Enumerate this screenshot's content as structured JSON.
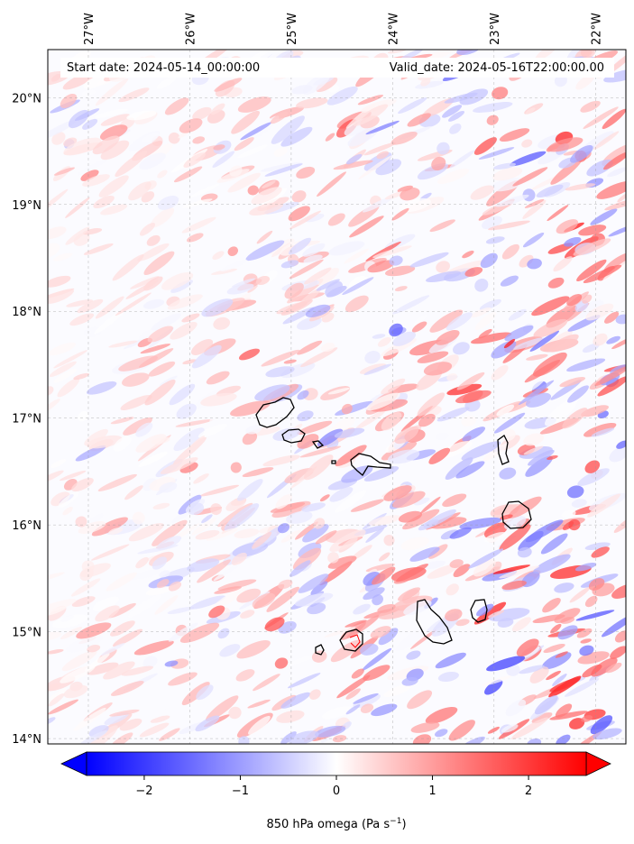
{
  "header": {
    "start_date": "Start date: 2024-05-14_00:00:00",
    "valid_date": "Valid_date: 2024-05-16T22:00:00.00"
  },
  "map": {
    "lon_range": [
      -27.4,
      -21.7
    ],
    "lat_range": [
      13.95,
      20.45
    ],
    "lon_ticks": [
      {
        "value": -27,
        "label": "27°W"
      },
      {
        "value": -26,
        "label": "26°W"
      },
      {
        "value": -25,
        "label": "25°W"
      },
      {
        "value": -24,
        "label": "24°W"
      },
      {
        "value": -23,
        "label": "23°W"
      },
      {
        "value": -22,
        "label": "22°W"
      }
    ],
    "lat_ticks": [
      {
        "value": 14,
        "label": "14°N"
      },
      {
        "value": 15,
        "label": "15°N"
      },
      {
        "value": 16,
        "label": "16°N"
      },
      {
        "value": 17,
        "label": "17°N"
      },
      {
        "value": 18,
        "label": "18°N"
      },
      {
        "value": 19,
        "label": "19°N"
      },
      {
        "value": 20,
        "label": "20°N"
      }
    ],
    "gridlines": true,
    "field_colors": {
      "negative": "#0000ff",
      "zero": "#ffffff",
      "positive": "#ff0000"
    }
  },
  "colorbar": {
    "range": [
      -2.6,
      2.6
    ],
    "ticks": [
      {
        "value": -2,
        "label": "−2"
      },
      {
        "value": -1,
        "label": "−1"
      },
      {
        "value": 0,
        "label": "0"
      },
      {
        "value": 1,
        "label": "1"
      },
      {
        "value": 2,
        "label": "2"
      }
    ],
    "label_main": "850 hPa omega (Pa s",
    "label_exp": "−1",
    "label_close": ")",
    "extend": "both"
  }
}
